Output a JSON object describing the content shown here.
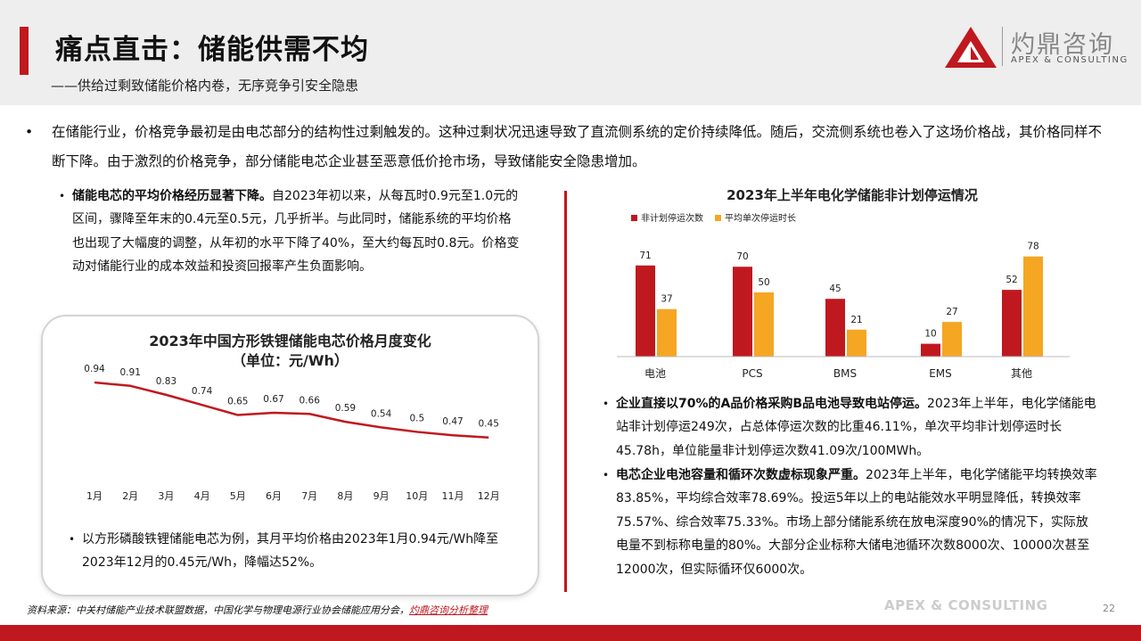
{
  "header": {
    "title": "痛点直击：储能供需不均",
    "subtitle": "——供给过剩致储能价格内卷，无序竞争引安全隐患",
    "logo_cn": "灼鼎咨询",
    "logo_en": "APEX & CONSULTING"
  },
  "intro": {
    "bullet": "•",
    "text": "在储能行业，价格竞争最初是由电芯部分的结构性过剩触发的。这种过剩状况迅速导致了直流侧系统的定价持续降低。随后，交流侧系统也卷入了这场价格战，其价格同样不断下降。由于激烈的价格竞争，部分储能电芯企业甚至恶意低价抢市场，导致储能安全隐患增加。"
  },
  "left": {
    "bullet1_bold": "储能电芯的平均价格经历显著下降。",
    "bullet1_text": "自2023年初以来，从每瓦时0.9元至1.0元的区间，骤降至年末的0.4元至0.5元，几乎折半。与此同时，储能系统的平均价格也出现了大幅度的调整，从年初的水平下降了40%，至大约每瓦时0.8元。价格变动对储能行业的成本效益和投资回报率产生负面影响。",
    "bullet2_text": "以方形磷酸铁锂储能电芯为例，其月平均价格由2023年1月0.94元/Wh降至2023年12月的0.45元/Wh，降幅达52%。"
  },
  "right": {
    "bullet1_bold": "企业直接以70%的A品价格采购B品电池导致电站停运。",
    "bullet1_text": "2023年上半年，电化学储能电站非计划停运249次，占总体停运次数的比重46.11%，单次平均非计划停运时长45.78h，单位能量非计划停运次数41.09次/100MWh。",
    "bullet2_bold": "电芯企业电池容量和循环次数虚标现象严重。",
    "bullet2_text": "2023年上半年，电化学储能平均转换效率83.85%，平均综合效率78.69%。投运5年以上的电站能效水平明显降低，转换效率75.57%、综合效率75.33%。市场上部分储能系统在放电深度90%的情况下，实际放电量不到标称电量的80%。大部分企业标称大储电池循环次数8000次、10000次甚至12000次，但实际循环仅6000次。"
  },
  "chart_data": [
    {
      "type": "line",
      "title": "2023年中国方形铁锂储能电芯价格月度变化",
      "subtitle": "（单位：元/Wh）",
      "categories": [
        "1月",
        "2月",
        "3月",
        "4月",
        "5月",
        "6月",
        "7月",
        "8月",
        "9月",
        "10月",
        "11月",
        "12月"
      ],
      "series": [
        {
          "values": [
            0.94,
            0.91,
            0.83,
            0.74,
            0.65,
            0.67,
            0.66,
            0.59,
            0.54,
            0.5,
            0.47,
            0.45
          ]
        }
      ],
      "color": "#c0181f",
      "grid": false
    },
    {
      "type": "bar",
      "title": "2023年上半年电化学储能非计划停运情况",
      "categories": [
        "电池",
        "PCS",
        "BMS",
        "EMS",
        "其他"
      ],
      "series": [
        {
          "name": "非计划停运次数",
          "values": [
            71,
            70,
            45,
            10,
            52
          ],
          "color": "#c0181f"
        },
        {
          "name": "平均单次停运时长",
          "values": [
            37,
            50,
            21,
            27,
            78
          ],
          "color": "#f5a623"
        }
      ],
      "legend": "top-left",
      "grid": false
    }
  ],
  "footer": {
    "source_prefix": "资料来源：中关村储能产业技术联盟数据，中国化学与物理电源行业协会储能应用分会，",
    "source_highlight": "灼鼎咨询分析整理",
    "watermark": "APEX & CONSULTING",
    "page": "22"
  }
}
